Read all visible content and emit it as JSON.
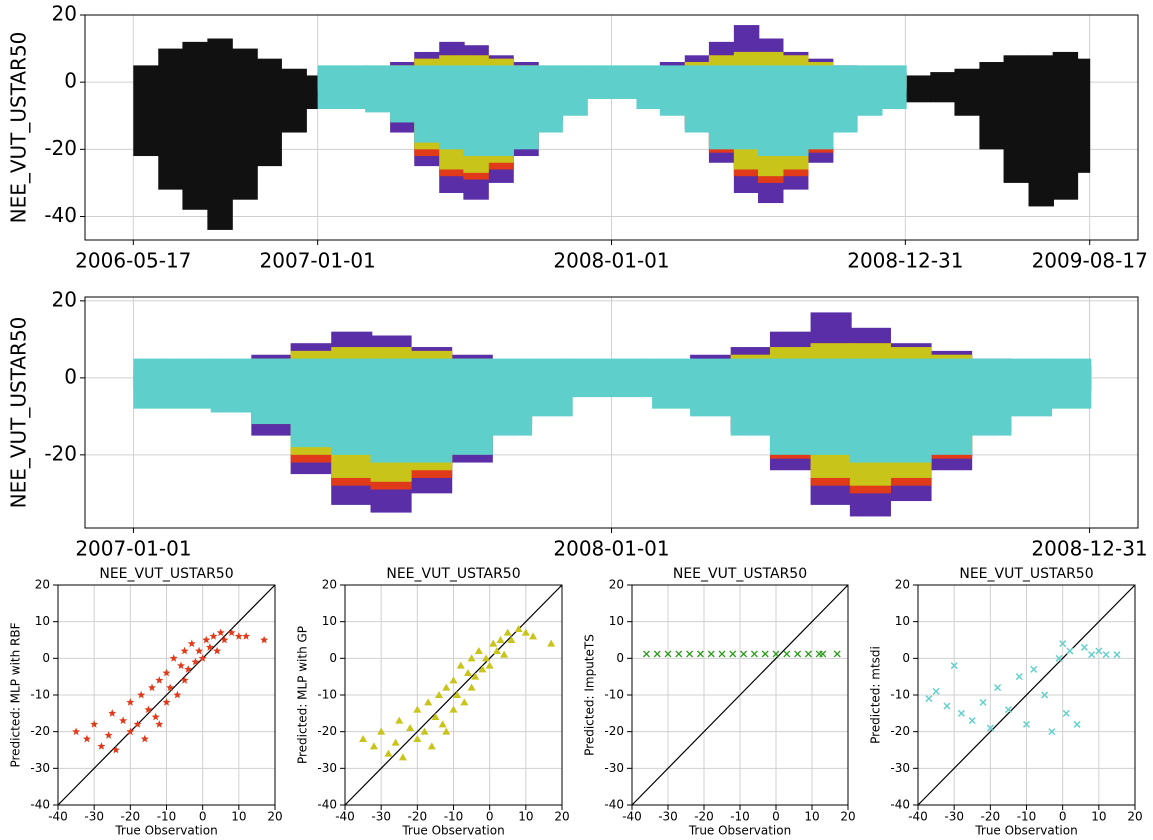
{
  "chart_data": [
    {
      "type": "area",
      "ylabel": "NEE_VUT_USTAR50",
      "xlim": [
        "2006-03-18",
        "2009-10-16"
      ],
      "ylim": [
        -47,
        20
      ],
      "xticks": [
        "2006-05-17",
        "2007-01-01",
        "2008-01-01",
        "2008-12-31",
        "2009-08-17"
      ],
      "yticks": [
        -40,
        -20,
        0,
        20
      ],
      "grid": true,
      "series": [
        {
          "color": "#111111",
          "x": [
            "2006-05-17",
            "2006-06-17",
            "2006-07-17",
            "2006-08-17",
            "2006-09-17",
            "2006-10-17",
            "2006-11-17",
            "2006-12-01"
          ],
          "low": [
            -22,
            -32,
            -38,
            -44,
            -35,
            -25,
            -15,
            -8
          ],
          "high": [
            5,
            10,
            12,
            13,
            10,
            7,
            4,
            2
          ]
        },
        {
          "color": "#111111",
          "x": [
            "2008-12-31",
            "2009-01-31",
            "2009-03-02",
            "2009-04-02",
            "2009-05-02",
            "2009-06-02",
            "2009-07-02",
            "2009-07-17"
          ],
          "low": [
            -6,
            -6,
            -10,
            -20,
            -30,
            -37,
            -35,
            -27
          ],
          "high": [
            2,
            3,
            4,
            6,
            8,
            8,
            9,
            7
          ]
        },
        {
          "color": "#5a2ea6",
          "x": [
            "2007-01-01",
            "2007-02-01",
            "2007-03-01",
            "2007-04-01",
            "2007-05-01",
            "2007-06-01",
            "2007-07-01",
            "2007-08-01",
            "2007-09-01",
            "2007-10-01",
            "2007-11-01",
            "2007-12-01",
            "2008-01-01",
            "2008-02-01",
            "2008-03-01",
            "2008-04-01",
            "2008-05-01",
            "2008-06-01",
            "2008-07-01",
            "2008-08-01",
            "2008-09-01",
            "2008-10-01",
            "2008-11-01",
            "2008-12-01"
          ],
          "low": [
            -3,
            -5,
            -8,
            -15,
            -25,
            -33,
            -35,
            -30,
            -22,
            -12,
            -5,
            -2,
            -2,
            -4,
            -8,
            -14,
            -24,
            -33,
            -36,
            -32,
            -24,
            -14,
            -6,
            -3
          ],
          "high": [
            3,
            3,
            4,
            6,
            9,
            12,
            11,
            8,
            6,
            4,
            3,
            2,
            3,
            4,
            6,
            8,
            12,
            17,
            13,
            9,
            7,
            5,
            4,
            3
          ]
        },
        {
          "color": "#e03a1a",
          "x": [
            "2007-01-01",
            "2007-02-01",
            "2007-03-01",
            "2007-04-01",
            "2007-05-01",
            "2007-06-01",
            "2007-07-01",
            "2007-08-01",
            "2007-09-01",
            "2007-10-01",
            "2007-11-01",
            "2007-12-01",
            "2008-01-01",
            "2008-02-01",
            "2008-03-01",
            "2008-04-01",
            "2008-05-01",
            "2008-06-01",
            "2008-07-01",
            "2008-08-01",
            "2008-09-01",
            "2008-10-01",
            "2008-11-01",
            "2008-12-01"
          ],
          "low": [
            -2,
            -3,
            -6,
            -12,
            -22,
            -28,
            -29,
            -26,
            -19,
            -10,
            -4,
            -2,
            -2,
            -3,
            -6,
            -12,
            -21,
            -28,
            -30,
            -28,
            -21,
            -12,
            -5,
            -2
          ],
          "high": [
            2,
            2,
            3,
            5,
            7,
            8,
            8,
            7,
            5,
            3,
            2,
            2,
            2,
            3,
            4,
            6,
            8,
            9,
            9,
            8,
            6,
            4,
            3,
            2
          ]
        },
        {
          "color": "#c8c419",
          "x": [
            "2007-01-01",
            "2007-02-01",
            "2007-03-01",
            "2007-04-01",
            "2007-05-01",
            "2007-06-01",
            "2007-07-01",
            "2007-08-01",
            "2007-09-01",
            "2007-10-01",
            "2007-11-01",
            "2007-12-01",
            "2008-01-01",
            "2008-02-01",
            "2008-03-01",
            "2008-04-01",
            "2008-05-01",
            "2008-06-01",
            "2008-07-01",
            "2008-08-01",
            "2008-09-01",
            "2008-10-01",
            "2008-11-01",
            "2008-12-01"
          ],
          "low": [
            -2,
            -3,
            -5,
            -11,
            -20,
            -26,
            -27,
            -24,
            -17,
            -9,
            -4,
            -2,
            -2,
            -3,
            -5,
            -11,
            -19,
            -26,
            -28,
            -26,
            -19,
            -11,
            -4,
            -2
          ],
          "high": [
            2,
            2,
            3,
            5,
            7,
            8,
            8,
            7,
            5,
            3,
            2,
            2,
            2,
            3,
            4,
            6,
            8,
            9,
            9,
            8,
            6,
            4,
            3,
            2
          ]
        },
        {
          "color": "#5ecfcb",
          "x": [
            "2007-01-01",
            "2007-02-01",
            "2007-03-01",
            "2007-04-01",
            "2007-05-01",
            "2007-06-01",
            "2007-07-01",
            "2007-08-01",
            "2007-09-01",
            "2007-10-01",
            "2007-11-01",
            "2007-12-01",
            "2008-01-01",
            "2008-02-01",
            "2008-03-01",
            "2008-04-01",
            "2008-05-01",
            "2008-06-01",
            "2008-07-01",
            "2008-08-01",
            "2008-09-01",
            "2008-10-01",
            "2008-11-01",
            "2008-12-01"
          ],
          "low": [
            -8,
            -8,
            -9,
            -12,
            -18,
            -20,
            -22,
            -22,
            -20,
            -15,
            -10,
            -5,
            -5,
            -8,
            -10,
            -15,
            -20,
            -20,
            -22,
            -22,
            -20,
            -15,
            -10,
            -8
          ],
          "high": [
            5,
            5,
            5,
            5,
            5,
            5,
            5,
            5,
            5,
            5,
            5,
            5,
            5,
            5,
            5,
            5,
            5,
            5,
            5,
            5,
            5,
            5,
            5,
            5
          ]
        }
      ]
    },
    {
      "type": "area",
      "ylabel": "NEE_VUT_USTAR50",
      "xlim": [
        "2006-11-25",
        "2009-02-06"
      ],
      "ylim": [
        -39,
        21
      ],
      "xticks": [
        "2007-01-01",
        "2008-01-01",
        "2008-12-31"
      ],
      "yticks": [
        -20,
        0,
        20
      ],
      "grid": true,
      "series": [
        {
          "color": "#5a2ea6",
          "x": [
            "2007-01-01",
            "2007-02-01",
            "2007-03-01",
            "2007-04-01",
            "2007-05-01",
            "2007-06-01",
            "2007-07-01",
            "2007-08-01",
            "2007-09-01",
            "2007-10-01",
            "2007-11-01",
            "2007-12-01",
            "2008-01-01",
            "2008-02-01",
            "2008-03-01",
            "2008-04-01",
            "2008-05-01",
            "2008-06-01",
            "2008-07-01",
            "2008-08-01",
            "2008-09-01",
            "2008-10-01",
            "2008-11-01",
            "2008-12-01"
          ],
          "low": [
            -3,
            -5,
            -8,
            -15,
            -25,
            -33,
            -35,
            -30,
            -22,
            -12,
            -5,
            -2,
            -2,
            -4,
            -8,
            -14,
            -24,
            -33,
            -36,
            -32,
            -24,
            -14,
            -6,
            -3
          ],
          "high": [
            3,
            3,
            4,
            6,
            9,
            12,
            11,
            8,
            6,
            4,
            3,
            2,
            3,
            4,
            6,
            8,
            12,
            17,
            13,
            9,
            7,
            5,
            4,
            3
          ]
        },
        {
          "color": "#e03a1a",
          "x": [
            "2007-01-01",
            "2007-02-01",
            "2007-03-01",
            "2007-04-01",
            "2007-05-01",
            "2007-06-01",
            "2007-07-01",
            "2007-08-01",
            "2007-09-01",
            "2007-10-01",
            "2007-11-01",
            "2007-12-01",
            "2008-01-01",
            "2008-02-01",
            "2008-03-01",
            "2008-04-01",
            "2008-05-01",
            "2008-06-01",
            "2008-07-01",
            "2008-08-01",
            "2008-09-01",
            "2008-10-01",
            "2008-11-01",
            "2008-12-01"
          ],
          "low": [
            -2,
            -3,
            -6,
            -12,
            -22,
            -28,
            -29,
            -26,
            -19,
            -10,
            -4,
            -2,
            -2,
            -3,
            -6,
            -12,
            -21,
            -28,
            -30,
            -28,
            -21,
            -12,
            -5,
            -2
          ],
          "high": [
            2,
            2,
            3,
            5,
            7,
            8,
            8,
            7,
            5,
            3,
            2,
            2,
            2,
            3,
            4,
            6,
            8,
            9,
            9,
            8,
            6,
            4,
            3,
            2
          ]
        },
        {
          "color": "#c8c419",
          "x": [
            "2007-01-01",
            "2007-02-01",
            "2007-03-01",
            "2007-04-01",
            "2007-05-01",
            "2007-06-01",
            "2007-07-01",
            "2007-08-01",
            "2007-09-01",
            "2007-10-01",
            "2007-11-01",
            "2007-12-01",
            "2008-01-01",
            "2008-02-01",
            "2008-03-01",
            "2008-04-01",
            "2008-05-01",
            "2008-06-01",
            "2008-07-01",
            "2008-08-01",
            "2008-09-01",
            "2008-10-01",
            "2008-11-01",
            "2008-12-01"
          ],
          "low": [
            -2,
            -3,
            -5,
            -11,
            -20,
            -26,
            -27,
            -24,
            -17,
            -9,
            -4,
            -2,
            -2,
            -3,
            -5,
            -11,
            -19,
            -26,
            -28,
            -26,
            -19,
            -11,
            -4,
            -2
          ],
          "high": [
            2,
            2,
            3,
            5,
            7,
            8,
            8,
            7,
            5,
            3,
            2,
            2,
            2,
            3,
            4,
            6,
            8,
            9,
            9,
            8,
            6,
            4,
            3,
            2
          ]
        },
        {
          "color": "#5ecfcb",
          "x": [
            "2007-01-01",
            "2007-02-01",
            "2007-03-01",
            "2007-04-01",
            "2007-05-01",
            "2007-06-01",
            "2007-07-01",
            "2007-08-01",
            "2007-09-01",
            "2007-10-01",
            "2007-11-01",
            "2007-12-01",
            "2008-01-01",
            "2008-02-01",
            "2008-03-01",
            "2008-04-01",
            "2008-05-01",
            "2008-06-01",
            "2008-07-01",
            "2008-08-01",
            "2008-09-01",
            "2008-10-01",
            "2008-11-01",
            "2008-12-01"
          ],
          "low": [
            -8,
            -8,
            -9,
            -12,
            -18,
            -20,
            -22,
            -22,
            -20,
            -15,
            -10,
            -5,
            -5,
            -8,
            -10,
            -15,
            -20,
            -20,
            -22,
            -22,
            -20,
            -15,
            -10,
            -8
          ],
          "high": [
            5,
            5,
            5,
            5,
            5,
            5,
            5,
            5,
            5,
            5,
            5,
            5,
            5,
            5,
            5,
            5,
            5,
            5,
            5,
            5,
            5,
            5,
            5,
            5
          ]
        }
      ]
    },
    {
      "type": "scatter",
      "title": "NEE_VUT_USTAR50",
      "xlabel": "True Observation",
      "ylabel": "Predicted: MLP with RBF",
      "xlim": [
        -40,
        20
      ],
      "ylim": [
        -40,
        20
      ],
      "xticks": [
        -40,
        -30,
        -20,
        -10,
        0,
        10,
        20
      ],
      "yticks": [
        -40,
        -30,
        -20,
        -10,
        0,
        10,
        20
      ],
      "grid": true,
      "color": "#e03a1a",
      "marker": "star",
      "x": [
        -35,
        -32,
        -30,
        -28,
        -26,
        -25,
        -24,
        -22,
        -20,
        -20,
        -18,
        -17,
        -16,
        -15,
        -14,
        -13,
        -12,
        -12,
        -10,
        -10,
        -9,
        -8,
        -7,
        -6,
        -5,
        -5,
        -4,
        -3,
        -2,
        -1,
        0,
        1,
        2,
        3,
        4,
        5,
        6,
        8,
        10,
        12,
        17
      ],
      "y": [
        -20,
        -22,
        -18,
        -24,
        -21,
        -15,
        -25,
        -17,
        -20,
        -12,
        -18,
        -10,
        -22,
        -14,
        -8,
        -16,
        -6,
        -18,
        -4,
        -12,
        -8,
        0,
        -10,
        -2,
        -6,
        2,
        -3,
        4,
        -1,
        2,
        0,
        5,
        3,
        6,
        2,
        7,
        5,
        7,
        6,
        6,
        5
      ]
    },
    {
      "type": "scatter",
      "title": "NEE_VUT_USTAR50",
      "xlabel": "True Observation",
      "ylabel": "Predicted: MLP with GP",
      "xlim": [
        -40,
        20
      ],
      "ylim": [
        -40,
        20
      ],
      "xticks": [
        -40,
        -30,
        -20,
        -10,
        0,
        10,
        20
      ],
      "yticks": [
        -40,
        -30,
        -20,
        -10,
        0,
        10,
        20
      ],
      "grid": true,
      "color": "#c8c419",
      "marker": "triangle",
      "x": [
        -35,
        -32,
        -30,
        -28,
        -26,
        -25,
        -24,
        -22,
        -20,
        -20,
        -18,
        -17,
        -16,
        -15,
        -14,
        -13,
        -12,
        -12,
        -10,
        -10,
        -9,
        -8,
        -7,
        -6,
        -5,
        -5,
        -4,
        -3,
        -2,
        -1,
        0,
        1,
        2,
        3,
        4,
        5,
        6,
        8,
        10,
        12,
        17
      ],
      "y": [
        -22,
        -24,
        -20,
        -26,
        -23,
        -17,
        -27,
        -19,
        -22,
        -14,
        -20,
        -12,
        -24,
        -16,
        -10,
        -18,
        -8,
        -20,
        -6,
        -14,
        -10,
        -2,
        -12,
        -4,
        -8,
        0,
        -5,
        2,
        -3,
        0,
        -2,
        4,
        2,
        5,
        1,
        7,
        5,
        8,
        7,
        6,
        4
      ]
    },
    {
      "type": "scatter",
      "title": "NEE_VUT_USTAR50",
      "xlabel": "True Observation",
      "ylabel": "Predicted: ImputeTS",
      "xlim": [
        -40,
        20
      ],
      "ylim": [
        -40,
        20
      ],
      "xticks": [
        -40,
        -30,
        -20,
        -10,
        0,
        10,
        20
      ],
      "yticks": [
        -40,
        -30,
        -20,
        -10,
        0,
        10,
        20
      ],
      "grid": true,
      "color": "#2a9a1a",
      "marker": "x",
      "x": [
        -36,
        -33,
        -30,
        -27,
        -24,
        -21,
        -18,
        -15,
        -12,
        -9,
        -6,
        -3,
        0,
        3,
        6,
        9,
        12,
        13,
        17
      ],
      "y": [
        1.2,
        1.2,
        1.2,
        1.2,
        1.2,
        1.2,
        1.2,
        1.2,
        1.2,
        1.2,
        1.2,
        1.2,
        1.2,
        1.2,
        1.2,
        1.2,
        1.2,
        1.2,
        1.2
      ]
    },
    {
      "type": "scatter",
      "title": "NEE_VUT_USTAR50",
      "xlabel": "True Observation",
      "ylabel": "Predicted: mtsdi",
      "xlim": [
        -40,
        20
      ],
      "ylim": [
        -40,
        20
      ],
      "xticks": [
        -40,
        -30,
        -20,
        -10,
        0,
        10,
        20
      ],
      "yticks": [
        -40,
        -30,
        -20,
        -10,
        0,
        10,
        20
      ],
      "grid": true,
      "color": "#5ecfcb",
      "marker": "x",
      "x": [
        -37,
        -35,
        -32,
        -30,
        -28,
        -25,
        -22,
        -20,
        -18,
        -15,
        -12,
        -10,
        -8,
        -5,
        -3,
        -1,
        0,
        1,
        2,
        4,
        6,
        8,
        10,
        12,
        15
      ],
      "y": [
        -11,
        -9,
        -13,
        -2,
        -15,
        -17,
        -12,
        -19,
        -8,
        -14,
        -5,
        -18,
        -3,
        -10,
        -20,
        0,
        4,
        -15,
        2,
        -18,
        3,
        1,
        2,
        1,
        1
      ]
    }
  ]
}
